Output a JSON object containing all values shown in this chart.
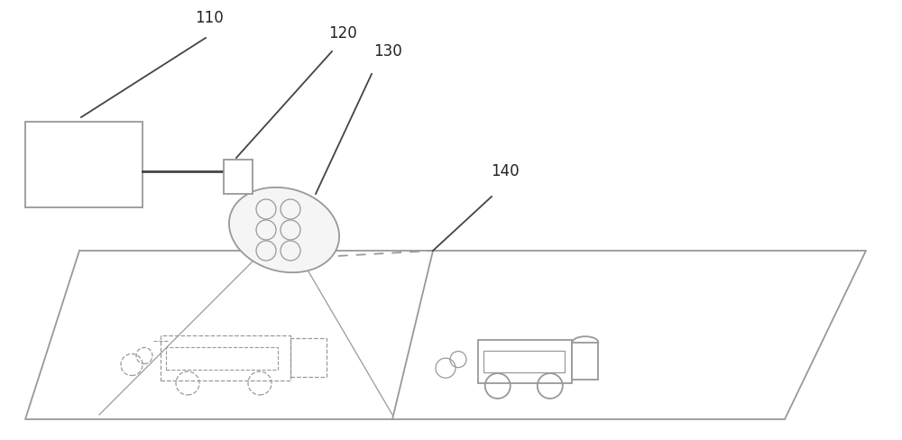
{
  "bg_color": "#ffffff",
  "line_color": "#999999",
  "dark_line": "#444444",
  "label_color": "#222222",
  "label_fontsize": 12,
  "label_110": "110",
  "label_120": "120",
  "label_130": "130",
  "label_140": "140"
}
